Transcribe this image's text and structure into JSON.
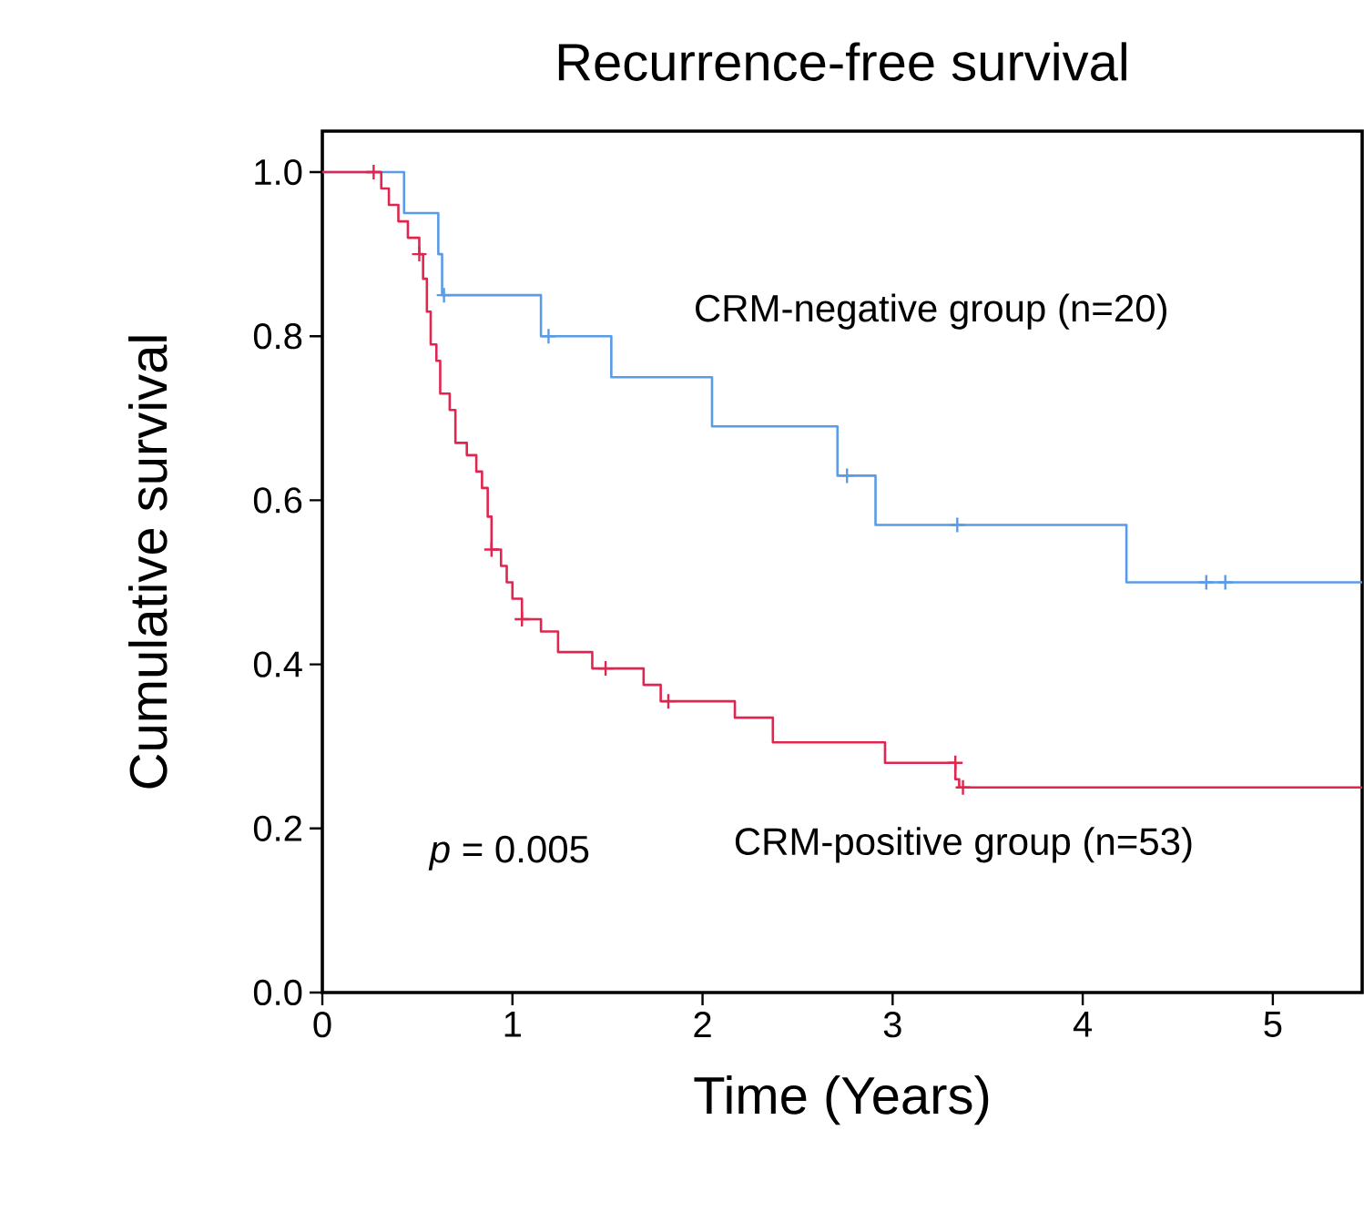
{
  "chart_data": {
    "type": "step",
    "title": "Recurrence-free survival",
    "xlabel": "Time (Years)",
    "ylabel": "Cumulative survival",
    "xlim": [
      0,
      5.47
    ],
    "ylim": [
      0,
      1.05
    ],
    "xticks": [
      0,
      1,
      2,
      3,
      4,
      5
    ],
    "yticks": [
      {
        "value": 0,
        "label": "0.0"
      },
      {
        "value": 0.2,
        "label": "0.2"
      },
      {
        "value": 0.4,
        "label": "0.4"
      },
      {
        "value": 0.6,
        "label": "0.6"
      },
      {
        "value": 0.8,
        "label": "0.8"
      },
      {
        "value": 1.0,
        "label": "1.0"
      }
    ],
    "grid": false,
    "annotations": [
      "*p* = 0.005"
    ],
    "series": [
      {
        "name": "CRM-negative group (n=20)",
        "color": "#5a9be6",
        "x": [
          0,
          0.43,
          0.61,
          0.63,
          1.15,
          1.52,
          2.05,
          2.71,
          2.91,
          4.23,
          5.47
        ],
        "values": [
          1.0,
          0.95,
          0.9,
          0.85,
          0.8,
          0.75,
          0.69,
          0.63,
          0.57,
          0.5,
          0.5
        ]
      },
      {
        "name": "CRM-positive group (n=53)",
        "color": "#e0264f",
        "x": [
          0,
          0.31,
          0.35,
          0.4,
          0.45,
          0.51,
          0.53,
          0.55,
          0.57,
          0.6,
          0.62,
          0.67,
          0.7,
          0.76,
          0.81,
          0.84,
          0.87,
          0.89,
          0.94,
          0.97,
          1.0,
          1.05,
          1.15,
          1.24,
          1.42,
          1.69,
          1.78,
          2.17,
          2.37,
          2.96,
          3.33,
          3.35,
          5.47
        ],
        "values": [
          1.0,
          0.98,
          0.96,
          0.94,
          0.92,
          0.9,
          0.87,
          0.83,
          0.79,
          0.77,
          0.73,
          0.71,
          0.67,
          0.655,
          0.635,
          0.615,
          0.58,
          0.54,
          0.52,
          0.5,
          0.48,
          0.455,
          0.44,
          0.415,
          0.395,
          0.375,
          0.355,
          0.335,
          0.305,
          0.28,
          0.26,
          0.25,
          0.25
        ]
      },
      {
        "type": "scatter",
        "marker": "cross",
        "color": "#5a9be6",
        "x": [
          0.64,
          1.19,
          2.76,
          3.34,
          4.65,
          4.75
        ],
        "values": [
          0.85,
          0.8,
          0.63,
          0.57,
          0.5,
          0.5
        ]
      },
      {
        "type": "scatter",
        "marker": "cross",
        "color": "#e0264f",
        "x": [
          0.27,
          0.51,
          0.89,
          1.05,
          1.49,
          1.82,
          3.33,
          3.37
        ],
        "values": [
          1.0,
          0.9,
          0.54,
          0.455,
          0.395,
          0.355,
          0.28,
          0.25
        ]
      }
    ]
  }
}
